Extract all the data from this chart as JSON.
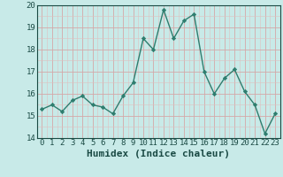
{
  "x": [
    0,
    1,
    2,
    3,
    4,
    5,
    6,
    7,
    8,
    9,
    10,
    11,
    12,
    13,
    14,
    15,
    16,
    17,
    18,
    19,
    20,
    21,
    22,
    23
  ],
  "y": [
    15.3,
    15.5,
    15.2,
    15.7,
    15.9,
    15.5,
    15.4,
    15.1,
    15.9,
    16.5,
    18.5,
    18.0,
    19.8,
    18.5,
    19.3,
    19.6,
    17.0,
    16.0,
    16.7,
    17.1,
    16.1,
    15.5,
    14.2,
    15.1
  ],
  "xlabel": "Humidex (Indice chaleur)",
  "ylim": [
    14,
    20
  ],
  "xlim": [
    -0.5,
    23.5
  ],
  "yticks": [
    14,
    15,
    16,
    17,
    18,
    19,
    20
  ],
  "xticks": [
    0,
    1,
    2,
    3,
    4,
    5,
    6,
    7,
    8,
    9,
    10,
    11,
    12,
    13,
    14,
    15,
    16,
    17,
    18,
    19,
    20,
    21,
    22,
    23
  ],
  "line_color": "#2e7d6e",
  "marker": "D",
  "marker_size": 2.2,
  "bg_color": "#c8eae8",
  "grid_major_color": "#d4a8a8",
  "grid_minor_color": "#dfc0c0",
  "line_width": 1.0,
  "xlabel_fontsize": 8,
  "tick_fontsize": 6.5,
  "label_color": "#1a4a44"
}
